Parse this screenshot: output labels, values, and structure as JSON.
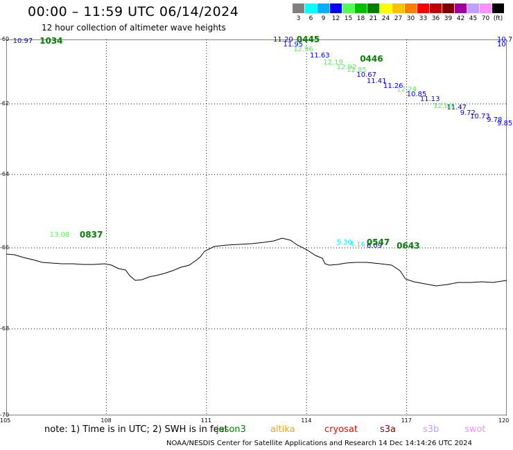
{
  "title": "00:00 – 11:59 UTC 06/14/2024",
  "subtitle": "12 hour collection of altimeter wave heights",
  "legend": {
    "unit": "(ft)",
    "levels": [
      {
        "label": "3",
        "color": "#808080"
      },
      {
        "label": "6",
        "color": "#00ffff"
      },
      {
        "label": "9",
        "color": "#00b0ff"
      },
      {
        "label": "12",
        "color": "#0000ff"
      },
      {
        "label": "15",
        "color": "#50ff50"
      },
      {
        "label": "18",
        "color": "#00c000"
      },
      {
        "label": "21",
        "color": "#008000"
      },
      {
        "label": "24",
        "color": "#ffff00"
      },
      {
        "label": "27",
        "color": "#ffc000"
      },
      {
        "label": "30",
        "color": "#ff8000"
      },
      {
        "label": "33",
        "color": "#ff0000"
      },
      {
        "label": "36",
        "color": "#c00000"
      },
      {
        "label": "39",
        "color": "#800000"
      },
      {
        "label": "42",
        "color": "#a000a0"
      },
      {
        "label": "45",
        "color": "#c0a0ff"
      },
      {
        "label": "70",
        "color": "#ff90ff"
      },
      {
        "label": "(ft)",
        "color": "#000000"
      }
    ]
  },
  "map": {
    "lon_range": [
      105,
      120
    ],
    "lat_range": [
      -60,
      -70
    ],
    "lon_ticks": [
      "105",
      "108",
      "111",
      "114",
      "117",
      "120"
    ],
    "lat_ticks": [
      "-60",
      "-62",
      "-64",
      "-66",
      "-68",
      "-70"
    ]
  },
  "observations": [
    {
      "text": "10.97",
      "lon": 105.2,
      "lat": -60.05,
      "color": "#0000ff"
    },
    {
      "text": "11.20",
      "lon": 113.0,
      "lat": -60.0,
      "color": "#0000ff"
    },
    {
      "text": "11.95",
      "lon": 113.3,
      "lat": -60.15,
      "color": "#0000ff"
    },
    {
      "text": "12.96",
      "lon": 113.6,
      "lat": -60.3,
      "color": "#50ff50"
    },
    {
      "text": "11.63",
      "lon": 114.1,
      "lat": -60.5,
      "color": "#0000ff"
    },
    {
      "text": "12.19",
      "lon": 114.5,
      "lat": -60.7,
      "color": "#50ff50"
    },
    {
      "text": "12.92",
      "lon": 114.9,
      "lat": -60.85,
      "color": "#50ff50"
    },
    {
      "text": "12.85",
      "lon": 115.2,
      "lat": -60.95,
      "color": "#50ff50"
    },
    {
      "text": "10.67",
      "lon": 115.5,
      "lat": -61.1,
      "color": "#0000ff"
    },
    {
      "text": "11.41",
      "lon": 115.8,
      "lat": -61.3,
      "color": "#0000ff"
    },
    {
      "text": "11.26",
      "lon": 116.3,
      "lat": -61.45,
      "color": "#0000ff"
    },
    {
      "text": "12.24",
      "lon": 116.7,
      "lat": -61.55,
      "color": "#50ff50"
    },
    {
      "text": "10.85",
      "lon": 117.0,
      "lat": -61.7,
      "color": "#0000ff"
    },
    {
      "text": "11.13",
      "lon": 117.4,
      "lat": -61.85,
      "color": "#0000ff"
    },
    {
      "text": "12.09",
      "lon": 117.8,
      "lat": -62.05,
      "color": "#50ff50"
    },
    {
      "text": "11.47",
      "lon": 118.2,
      "lat": -62.1,
      "color": "#0000ff"
    },
    {
      "text": "9.72",
      "lon": 118.6,
      "lat": -62.25,
      "color": "#0000ff"
    },
    {
      "text": "10.73",
      "lon": 118.9,
      "lat": -62.35,
      "color": "#0000ff"
    },
    {
      "text": "9.78",
      "lon": 119.4,
      "lat": -62.45,
      "color": "#0000ff"
    },
    {
      "text": "9.85",
      "lon": 119.8,
      "lat": -62.55,
      "color": "#0000ff"
    },
    {
      "text": "10.7",
      "lon": 119.8,
      "lat": -60.0,
      "color": "#0000ff"
    },
    {
      "text": "10",
      "lon": 119.95,
      "lat": -60.15,
      "color": "#0000ff"
    },
    {
      "text": "13.08",
      "lon": 106.3,
      "lat": -65.65,
      "color": "#50ff50"
    },
    {
      "text": "5.30",
      "lon": 114.9,
      "lat": -65.85,
      "color": "#00ffff"
    },
    {
      "text": "4.16",
      "lon": 115.3,
      "lat": -65.9,
      "color": "#00ffff"
    },
    {
      "text": "6.09",
      "lon": 115.8,
      "lat": -65.95,
      "color": "#0000ff"
    }
  ],
  "pass_times": [
    {
      "text": "1034",
      "lon": 106.0,
      "lat": -60.05
    },
    {
      "text": "0445",
      "lon": 113.7,
      "lat": -60.0
    },
    {
      "text": "0446",
      "lon": 115.6,
      "lat": -60.6
    },
    {
      "text": "0837",
      "lon": 107.2,
      "lat": -65.65
    },
    {
      "text": "0547",
      "lon": 115.8,
      "lat": -65.85
    },
    {
      "text": "0643",
      "lon": 116.7,
      "lat": -65.95
    }
  ],
  "footer": {
    "note": "note:  1) Time is in UTC; 2) SWH is in feet",
    "missions": [
      {
        "name": "jason3",
        "color": "#008000"
      },
      {
        "name": "altika",
        "color": "#ffa500"
      },
      {
        "name": "cryosat",
        "color": "#ff0000"
      },
      {
        "name": "s3a",
        "color": "#800000"
      },
      {
        "name": "s3b",
        "color": "#c0a0ff"
      },
      {
        "name": "swot",
        "color": "#ff90ff"
      }
    ],
    "credit": "NOAA/NESDIS Center for Satellite Applications and Research    14 Dec 14:14:26 UTC 2024"
  }
}
